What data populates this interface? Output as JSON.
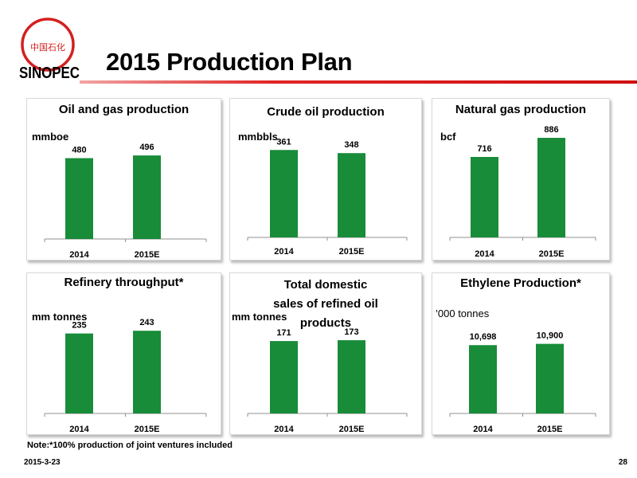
{
  "slide": {
    "title": "2015 Production Plan",
    "note": "Note:*100% production of joint ventures included",
    "date": "2015-3-23",
    "page_number": "28",
    "logo_text": "SINOPEC",
    "logo_cn": "中国石化"
  },
  "colors": {
    "bar": "#188c39",
    "accent": "#e02424"
  },
  "chart_data": [
    {
      "type": "bar",
      "title": "Oil and gas production",
      "ylabel": "mmboe",
      "categories": [
        "2014",
        "2015E"
      ],
      "values": [
        480,
        496
      ],
      "value_labels": [
        "480",
        "496"
      ],
      "ylim": [
        0,
        700
      ]
    },
    {
      "type": "bar",
      "title": "Crude oil production",
      "ylabel": "mmbbls",
      "categories": [
        "2014",
        "2015E"
      ],
      "values": [
        361,
        348
      ],
      "value_labels": [
        "361",
        "348"
      ],
      "ylim": [
        0,
        375
      ]
    },
    {
      "type": "bar",
      "title": "Natural gas production",
      "ylabel": "bcf",
      "categories": [
        "2014",
        "2015E"
      ],
      "values": [
        716,
        886
      ],
      "value_labels": [
        "716",
        "886"
      ],
      "ylim": [
        0,
        950
      ]
    },
    {
      "type": "bar",
      "title": "Refinery throughput*",
      "ylabel": "mm tonnes",
      "categories": [
        "2014",
        "2015E"
      ],
      "values": [
        235,
        243
      ],
      "value_labels": [
        "235",
        "243"
      ],
      "ylim": [
        0,
        330
      ]
    },
    {
      "type": "bar",
      "title": "Total domestic sales of refined oil products",
      "ylabel": "mm tonnes",
      "categories": [
        "2014",
        "2015E"
      ],
      "values": [
        171,
        173
      ],
      "value_labels": [
        "171",
        "173"
      ],
      "ylim": [
        0,
        190
      ]
    },
    {
      "type": "bar",
      "title": "Ethylene Production*",
      "ylabel": "’000 tonnes",
      "categories": [
        "2014",
        "2015E"
      ],
      "values": [
        10698,
        10900
      ],
      "value_labels": [
        "10,698",
        "10,900"
      ],
      "ylim": [
        0,
        12600
      ]
    }
  ]
}
